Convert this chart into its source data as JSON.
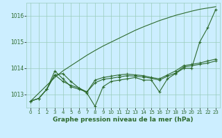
{
  "title": "Graphe pression niveau de la mer (hPa)",
  "bg_color": "#cceeff",
  "grid_color": "#99ccbb",
  "line_color": "#2d6a2d",
  "x_ticks": [
    0,
    1,
    2,
    3,
    4,
    5,
    6,
    7,
    8,
    9,
    10,
    11,
    12,
    13,
    14,
    15,
    16,
    17,
    18,
    19,
    20,
    21,
    22,
    23
  ],
  "ylim": [
    1012.5,
    1016.5
  ],
  "yticks": [
    1013,
    1014,
    1015,
    1016
  ],
  "series_with_markers": [
    [
      1012.75,
      1012.85,
      1013.2,
      1013.75,
      1013.8,
      1013.5,
      1013.25,
      1013.05,
      1012.55,
      1013.3,
      1013.5,
      1013.55,
      1013.6,
      1013.65,
      1013.55,
      1013.55,
      1013.1,
      1013.6,
      1013.8,
      1014.0,
      1014.0,
      1015.0,
      1015.55,
      1016.25
    ],
    [
      1012.75,
      1012.85,
      1013.2,
      1013.75,
      1013.5,
      1013.35,
      1013.25,
      1013.1,
      1013.45,
      1013.58,
      1013.62,
      1013.67,
      1013.72,
      1013.7,
      1013.67,
      1013.62,
      1013.55,
      1013.7,
      1013.82,
      1014.05,
      1014.1,
      1014.15,
      1014.2,
      1014.28
    ],
    [
      1012.75,
      1012.85,
      1013.2,
      1013.9,
      1013.6,
      1013.3,
      1013.2,
      1013.1,
      1013.55,
      1013.65,
      1013.7,
      1013.75,
      1013.78,
      1013.75,
      1013.72,
      1013.65,
      1013.6,
      1013.75,
      1013.9,
      1014.1,
      1014.15,
      1014.2,
      1014.28,
      1014.35
    ]
  ],
  "series_no_markers": [
    [
      1012.75,
      1013.05,
      1013.35,
      1013.65,
      1013.9,
      1014.1,
      1014.3,
      1014.5,
      1014.68,
      1014.85,
      1015.0,
      1015.15,
      1015.3,
      1015.45,
      1015.58,
      1015.7,
      1015.82,
      1015.92,
      1016.02,
      1016.1,
      1016.18,
      1016.25,
      1016.3,
      1016.35
    ]
  ]
}
